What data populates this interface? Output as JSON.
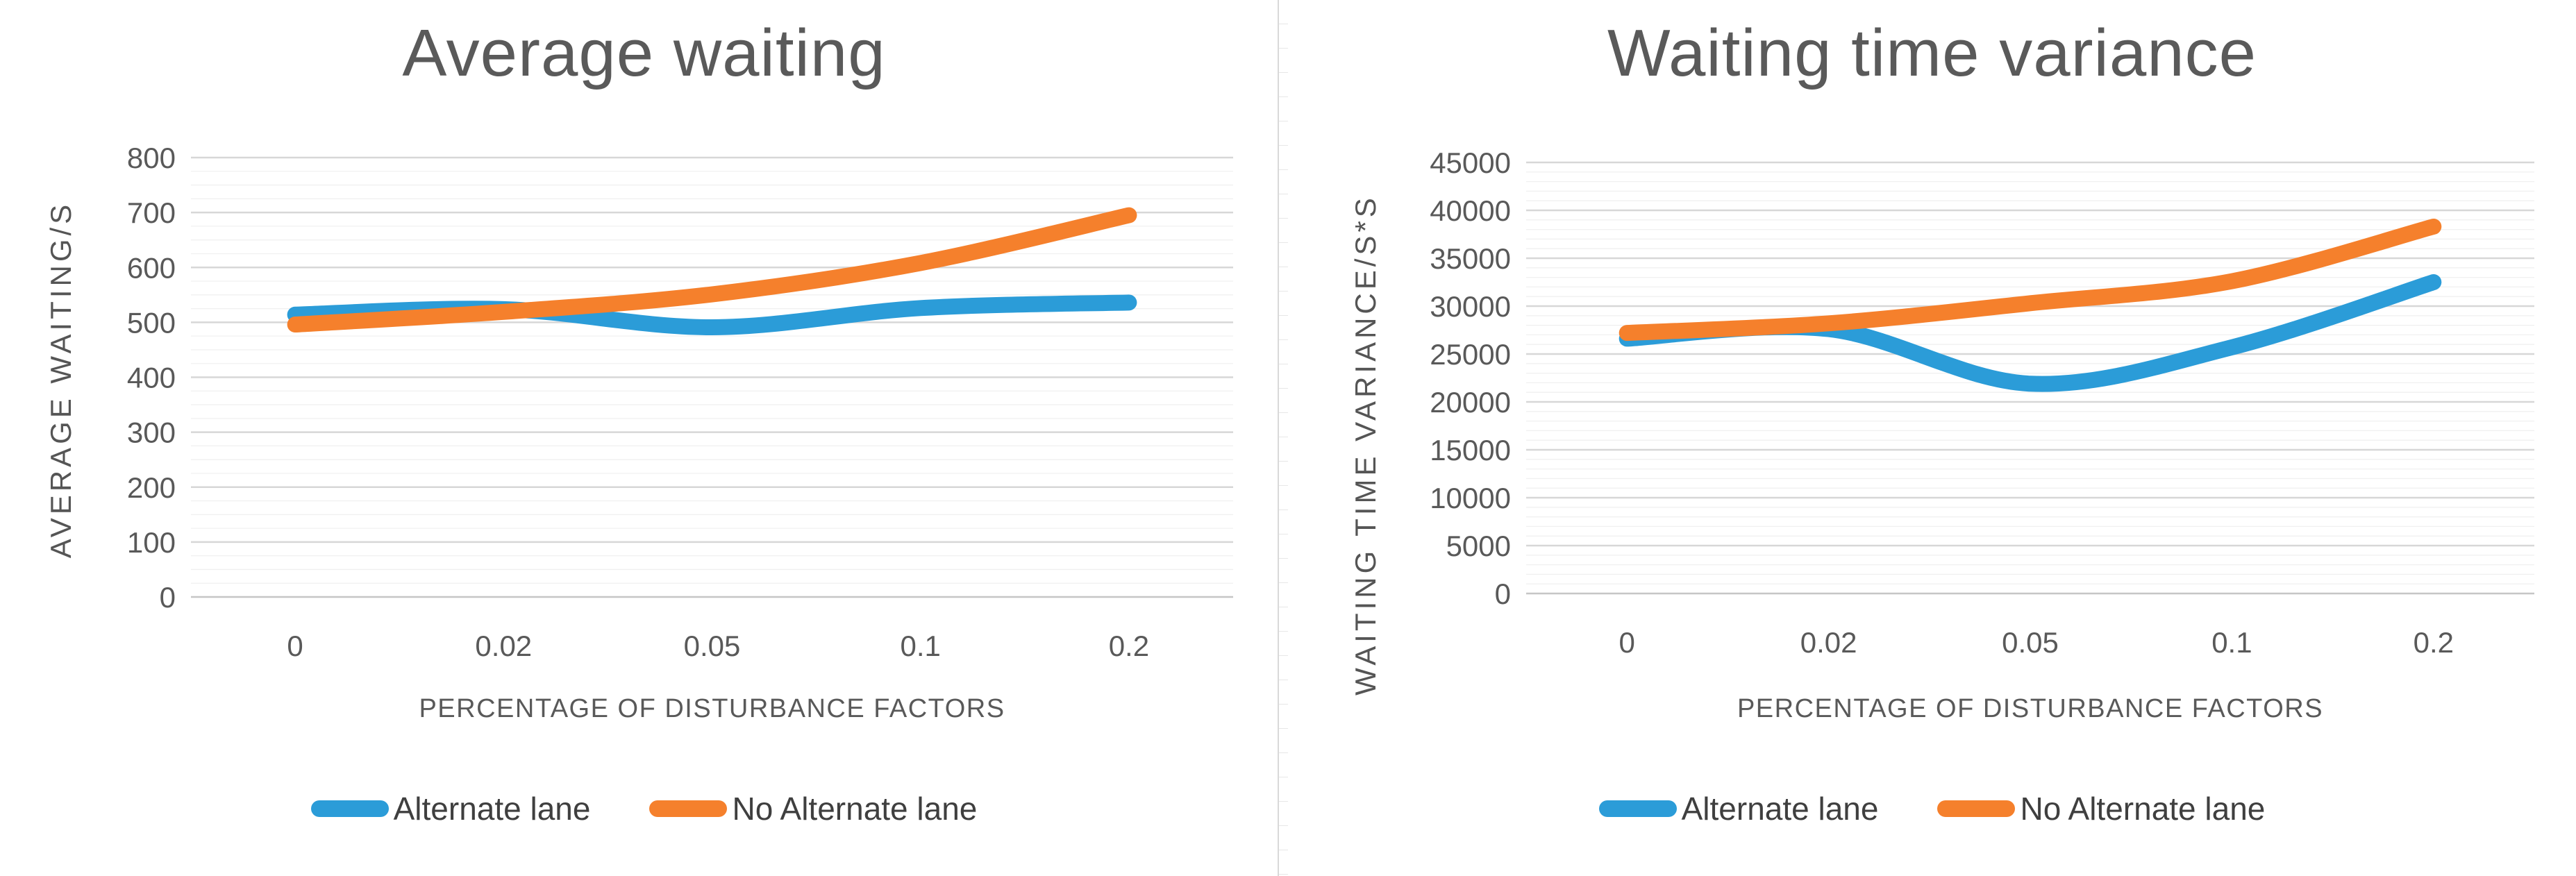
{
  "colors": {
    "series_blue": "#2B9CD8",
    "series_orange": "#F5802C",
    "grid_major": "#D7D7D7",
    "grid_minor": "#F0F0F0",
    "axis_zero_line": "#C6C6C6",
    "tick_text": "#595959",
    "title_text": "#5A5A5A",
    "legend_text": "#3F3F3F",
    "background": "#FFFFFF"
  },
  "chart_data": [
    {
      "type": "line",
      "title": "Average waiting",
      "ylabel": "AVERAGE WAITING/S",
      "xlabel": "PERCENTAGE OF DISTURBANCE FACTORS",
      "categories": [
        "0",
        "0.02",
        "0.05",
        "0.1",
        "0.2"
      ],
      "series": [
        {
          "name": "Alternate lane",
          "color": "#2B9CD8",
          "values": [
            514,
            524,
            491,
            526,
            536
          ]
        },
        {
          "name": "No Alternate lane",
          "color": "#F5802C",
          "values": [
            496,
            519,
            551,
            608,
            695
          ]
        }
      ],
      "ylim": [
        0,
        800
      ],
      "y_major_step": 100,
      "y_minor_step": 25,
      "y_tick_labels": [
        "0",
        "100",
        "200",
        "300",
        "400",
        "500",
        "600",
        "700",
        "800"
      ],
      "grid": true,
      "legend_position": "bottom"
    },
    {
      "type": "line",
      "title": "Waiting time variance",
      "ylabel": "WAITING TIME VARIANCE/S*S",
      "xlabel": "PERCENTAGE OF DISTURBANCE FACTORS",
      "categories": [
        "0",
        "0.02",
        "0.05",
        "0.1",
        "0.2"
      ],
      "series": [
        {
          "name": "Alternate lane",
          "color": "#2B9CD8",
          "values": [
            26600,
            27600,
            21900,
            25700,
            32500
          ]
        },
        {
          "name": "No Alternate lane",
          "color": "#F5802C",
          "values": [
            27200,
            28200,
            30300,
            32600,
            38300
          ]
        }
      ],
      "ylim": [
        0,
        45000
      ],
      "y_major_step": 5000,
      "y_minor_step": 1000,
      "y_tick_labels": [
        "0",
        "5000",
        "10000",
        "15000",
        "20000",
        "25000",
        "30000",
        "35000",
        "40000",
        "45000"
      ],
      "grid": true,
      "legend_position": "bottom"
    }
  ]
}
